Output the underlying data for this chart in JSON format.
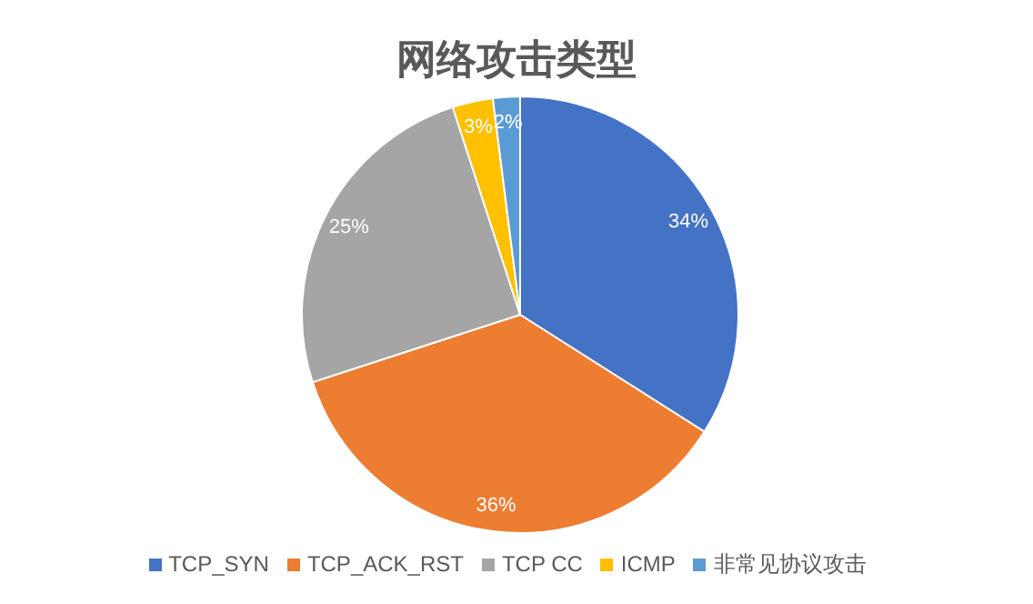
{
  "chart_data": {
    "type": "pie",
    "title": "网络攻击类型",
    "categories": [
      "TCP_SYN",
      "TCP_ACK_RST",
      "TCP CC",
      "ICMP",
      "非常见协议攻击"
    ],
    "values": [
      34,
      36,
      25,
      3,
      2
    ],
    "colors": [
      "#4472c4",
      "#ed7d31",
      "#a5a5a5",
      "#ffc000",
      "#5b9bd5"
    ],
    "value_labels": [
      "34%",
      "36%",
      "25%",
      "3%",
      "2%"
    ],
    "legend": "bottom"
  }
}
